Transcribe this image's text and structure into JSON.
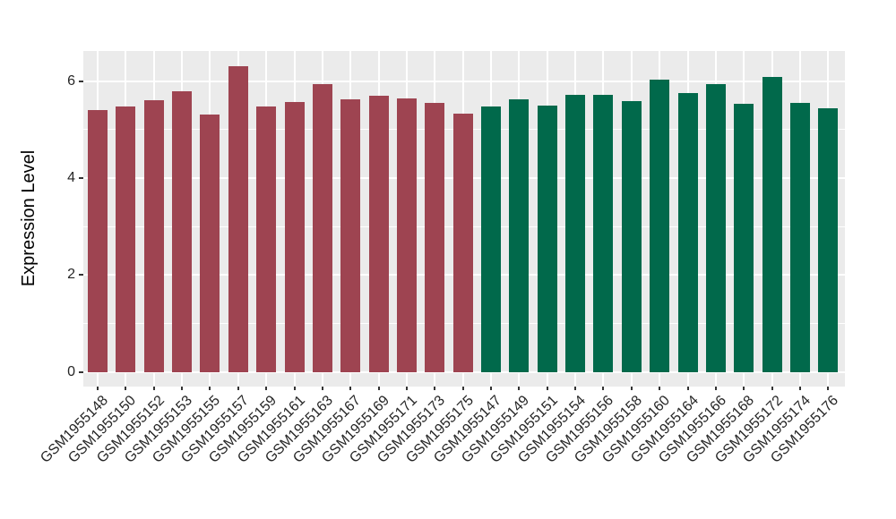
{
  "figure": {
    "background": "#FFFFFF",
    "panel_background": "#EBEBEB",
    "gridline_color": "#FFFFFF",
    "tick_mark_color": "#333333",
    "axis_text_color": "#262626",
    "axis_title_color": "#000000"
  },
  "chart_data": {
    "type": "bar",
    "title": "",
    "xlabel": "",
    "ylabel": "Expression Level",
    "ylim": [
      0,
      6.63
    ],
    "yticks": [
      0,
      2,
      4,
      6
    ],
    "yticks_minor": [
      1,
      3,
      5
    ],
    "grid": "major-and-minor-white-on-gray",
    "legend": "none",
    "groups": [
      {
        "name": "group-1",
        "color": "#9E4451"
      },
      {
        "name": "group-2",
        "color": "#01694B"
      }
    ],
    "categories": [
      "GSM1955148",
      "GSM1955150",
      "GSM1955152",
      "GSM1955153",
      "GSM1955155",
      "GSM1955157",
      "GSM1955159",
      "GSM1955161",
      "GSM1955163",
      "GSM1955167",
      "GSM1955169",
      "GSM1955171",
      "GSM1955173",
      "GSM1955175",
      "GSM1955147",
      "GSM1955149",
      "GSM1955151",
      "GSM1955154",
      "GSM1955156",
      "GSM1955158",
      "GSM1955160",
      "GSM1955164",
      "GSM1955166",
      "GSM1955168",
      "GSM1955172",
      "GSM1955174",
      "GSM1955176"
    ],
    "bars": [
      {
        "label": "GSM1955148",
        "value": 5.41,
        "group": 0
      },
      {
        "label": "GSM1955150",
        "value": 5.47,
        "group": 0
      },
      {
        "label": "GSM1955152",
        "value": 5.6,
        "group": 0
      },
      {
        "label": "GSM1955153",
        "value": 5.79,
        "group": 0
      },
      {
        "label": "GSM1955155",
        "value": 5.31,
        "group": 0
      },
      {
        "label": "GSM1955157",
        "value": 6.31,
        "group": 0
      },
      {
        "label": "GSM1955159",
        "value": 5.48,
        "group": 0
      },
      {
        "label": "GSM1955161",
        "value": 5.57,
        "group": 0
      },
      {
        "label": "GSM1955163",
        "value": 5.94,
        "group": 0
      },
      {
        "label": "GSM1955167",
        "value": 5.63,
        "group": 0
      },
      {
        "label": "GSM1955169",
        "value": 5.7,
        "group": 0
      },
      {
        "label": "GSM1955171",
        "value": 5.64,
        "group": 0
      },
      {
        "label": "GSM1955173",
        "value": 5.55,
        "group": 0
      },
      {
        "label": "GSM1955175",
        "value": 5.33,
        "group": 0
      },
      {
        "label": "GSM1955147",
        "value": 5.48,
        "group": 1
      },
      {
        "label": "GSM1955149",
        "value": 5.62,
        "group": 1
      },
      {
        "label": "GSM1955151",
        "value": 5.5,
        "group": 1
      },
      {
        "label": "GSM1955154",
        "value": 5.71,
        "group": 1
      },
      {
        "label": "GSM1955156",
        "value": 5.71,
        "group": 1
      },
      {
        "label": "GSM1955158",
        "value": 5.59,
        "group": 1
      },
      {
        "label": "GSM1955160",
        "value": 6.04,
        "group": 1
      },
      {
        "label": "GSM1955164",
        "value": 5.75,
        "group": 1
      },
      {
        "label": "GSM1955166",
        "value": 5.93,
        "group": 1
      },
      {
        "label": "GSM1955168",
        "value": 5.53,
        "group": 1
      },
      {
        "label": "GSM1955172",
        "value": 6.08,
        "group": 1
      },
      {
        "label": "GSM1955174",
        "value": 5.56,
        "group": 1
      },
      {
        "label": "GSM1955176",
        "value": 5.44,
        "group": 1
      }
    ]
  }
}
